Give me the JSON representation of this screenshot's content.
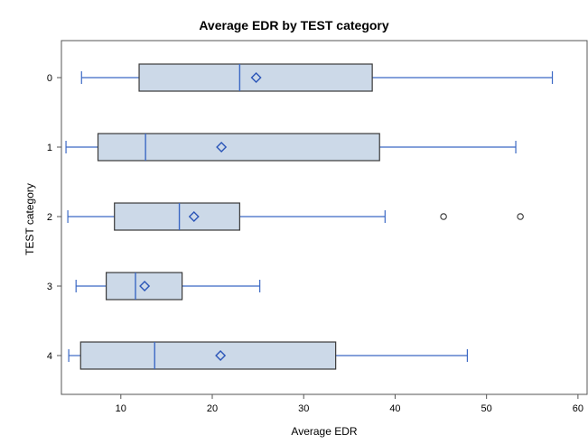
{
  "chart_data": {
    "type": "boxplot",
    "orientation": "horizontal",
    "title": "Average EDR by TEST category",
    "xlabel": "Average EDR",
    "ylabel": "TEST category",
    "xlim": [
      3.5,
      61
    ],
    "xticks": [
      10,
      20,
      30,
      40,
      50,
      60
    ],
    "categories": [
      "0",
      "1",
      "2",
      "3",
      "4"
    ],
    "boxes": [
      {
        "category": "0",
        "min": 5.7,
        "q1": 12.0,
        "median": 23.0,
        "mean": 24.8,
        "q3": 37.5,
        "max": 57.2,
        "outliers": []
      },
      {
        "category": "1",
        "min": 4.0,
        "q1": 7.5,
        "median": 12.7,
        "mean": 21.0,
        "q3": 38.3,
        "max": 53.2,
        "outliers": []
      },
      {
        "category": "2",
        "min": 4.2,
        "q1": 9.3,
        "median": 16.4,
        "mean": 18.0,
        "q3": 23.0,
        "max": 38.9,
        "outliers": [
          45.3,
          53.7
        ]
      },
      {
        "category": "3",
        "min": 5.1,
        "q1": 8.4,
        "median": 11.6,
        "mean": 12.6,
        "q3": 16.7,
        "max": 25.2,
        "outliers": []
      },
      {
        "category": "4",
        "min": 4.3,
        "q1": 5.6,
        "median": 13.7,
        "mean": 20.9,
        "q3": 33.5,
        "max": 47.9,
        "outliers": []
      }
    ],
    "grid": false,
    "legend": "none",
    "colors": {
      "box_fill": "#ccd9e8",
      "box_edge": "#3a3a3a",
      "whisker": "#3b68c4",
      "median": "#3b68c4",
      "mean_marker": "#2b55b8",
      "outlier": "#333333"
    }
  }
}
